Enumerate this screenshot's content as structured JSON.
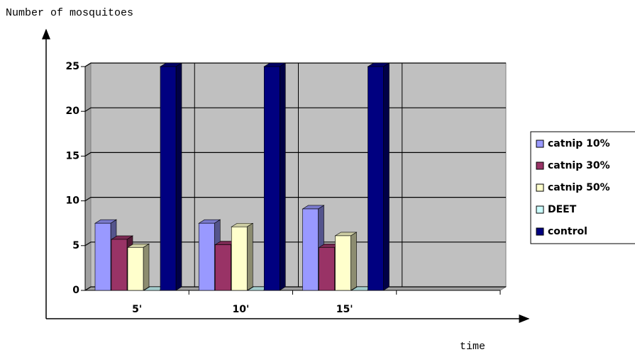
{
  "chart_data": {
    "type": "bar3d",
    "y_label": "Number of mosquitoes",
    "x_label": "time",
    "categories": [
      "5'",
      "10'",
      "15'",
      null
    ],
    "series": [
      {
        "name": "catnip 10%",
        "color": "#9999ff",
        "values": [
          7.5,
          7.5,
          9.1,
          null
        ]
      },
      {
        "name": "catnip 30%",
        "color": "#993366",
        "values": [
          5.7,
          5.1,
          4.8,
          null
        ]
      },
      {
        "name": "catnip 50%",
        "color": "#ffffcc",
        "values": [
          4.8,
          7.1,
          6.1,
          null
        ]
      },
      {
        "name": "DEET",
        "color": "#ccffff",
        "values": [
          0,
          0,
          0,
          null
        ]
      },
      {
        "name": "control",
        "color": "#000080",
        "values": [
          25,
          25,
          25,
          null
        ]
      }
    ],
    "ylim": [
      0,
      25
    ],
    "yticks": [
      0,
      5,
      10,
      15,
      20,
      25
    ],
    "grid": true,
    "legend": "right"
  }
}
